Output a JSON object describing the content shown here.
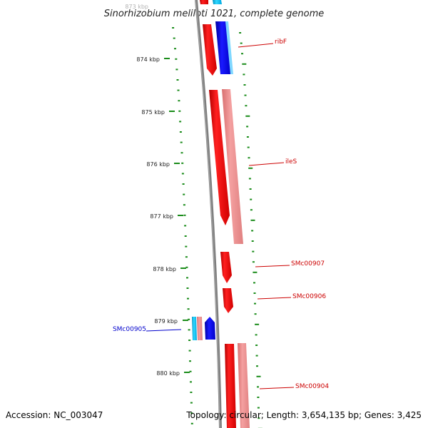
{
  "title": "Sinorhizobium meliloti 1021, complete genome",
  "footer": {
    "accession": "Accession: NC_003047",
    "topology": "Topology: circular; Length: 3,654,135 bp; Genes: 3,425"
  },
  "kbp_labels": [
    "873 kbp",
    "874 kbp",
    "875 kbp",
    "876 kbp",
    "877 kbp",
    "878 kbp",
    "879 kbp",
    "880 kbp"
  ],
  "gene_labels": {
    "ribF": "ribF",
    "ileS": "ileS",
    "SMc00907": "SMc00907",
    "SMc00906": "SMc00906",
    "SMc00905": "SMc00905",
    "SMc00904": "SMc00904"
  },
  "colors": {
    "backbone": "#808080",
    "forward_gene": "#ff0000",
    "forward_cds": "#f08c8c",
    "reverse_gene": "#0000ff",
    "reverse_cds": "#00c8ff",
    "forward_label": "#cc0000",
    "reverse_label": "#0000cc",
    "ticks": "#1a8c1a"
  }
}
